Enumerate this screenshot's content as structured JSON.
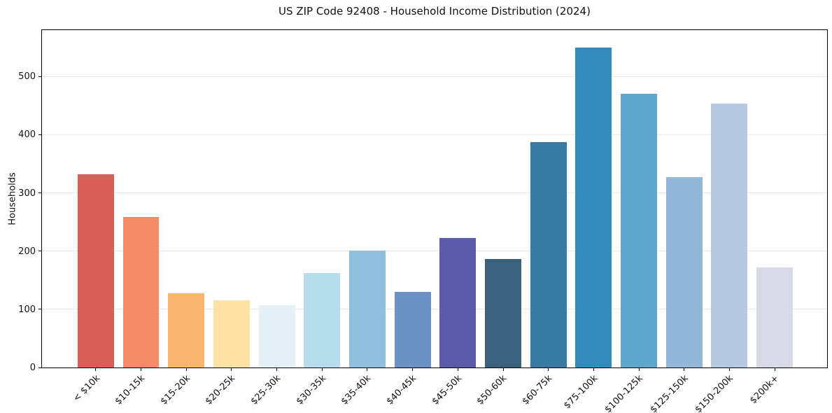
{
  "figure": {
    "title": "US ZIP Code 92408 - Household Income Distribution (2024)"
  },
  "chart_data": {
    "type": "bar",
    "title": "US ZIP Code 92408 - Household Income Distribution (2024)",
    "xlabel": "",
    "ylabel": "Households",
    "categories": [
      "< $10k",
      "$10-15k",
      "$15-20k",
      "$20-25k",
      "$25-30k",
      "$30-35k",
      "$35-40k",
      "$40-45k",
      "$45-50k",
      "$50-60k",
      "$60-75k",
      "$75-100k",
      "$100-125k",
      "$125-150k",
      "$150-200k",
      "$200k+"
    ],
    "values": [
      332,
      258,
      128,
      115,
      107,
      162,
      201,
      130,
      222,
      187,
      387,
      550,
      470,
      327,
      453,
      172
    ],
    "bar_colors": [
      "#d85f57",
      "#f58a67",
      "#fab471",
      "#fde2a4",
      "#e4f0f6",
      "#b7dcec",
      "#90bedd",
      "#6b92c5",
      "#5b5aab",
      "#3a627c",
      "#377aa4",
      "#348abd",
      "#5ea6cb",
      "#94b7d8",
      "#b6c9e0",
      "#d7d9e6"
    ],
    "yticks": [
      0,
      100,
      200,
      300,
      400,
      500
    ],
    "ylim": [
      0,
      582
    ],
    "grid": "horizontal",
    "legend_position": "none",
    "bar_width_fraction": 0.8,
    "colors": {
      "background": "#ffffff",
      "spine": "#000000",
      "gridline": "#e8e8ec",
      "text": "#111111"
    }
  }
}
